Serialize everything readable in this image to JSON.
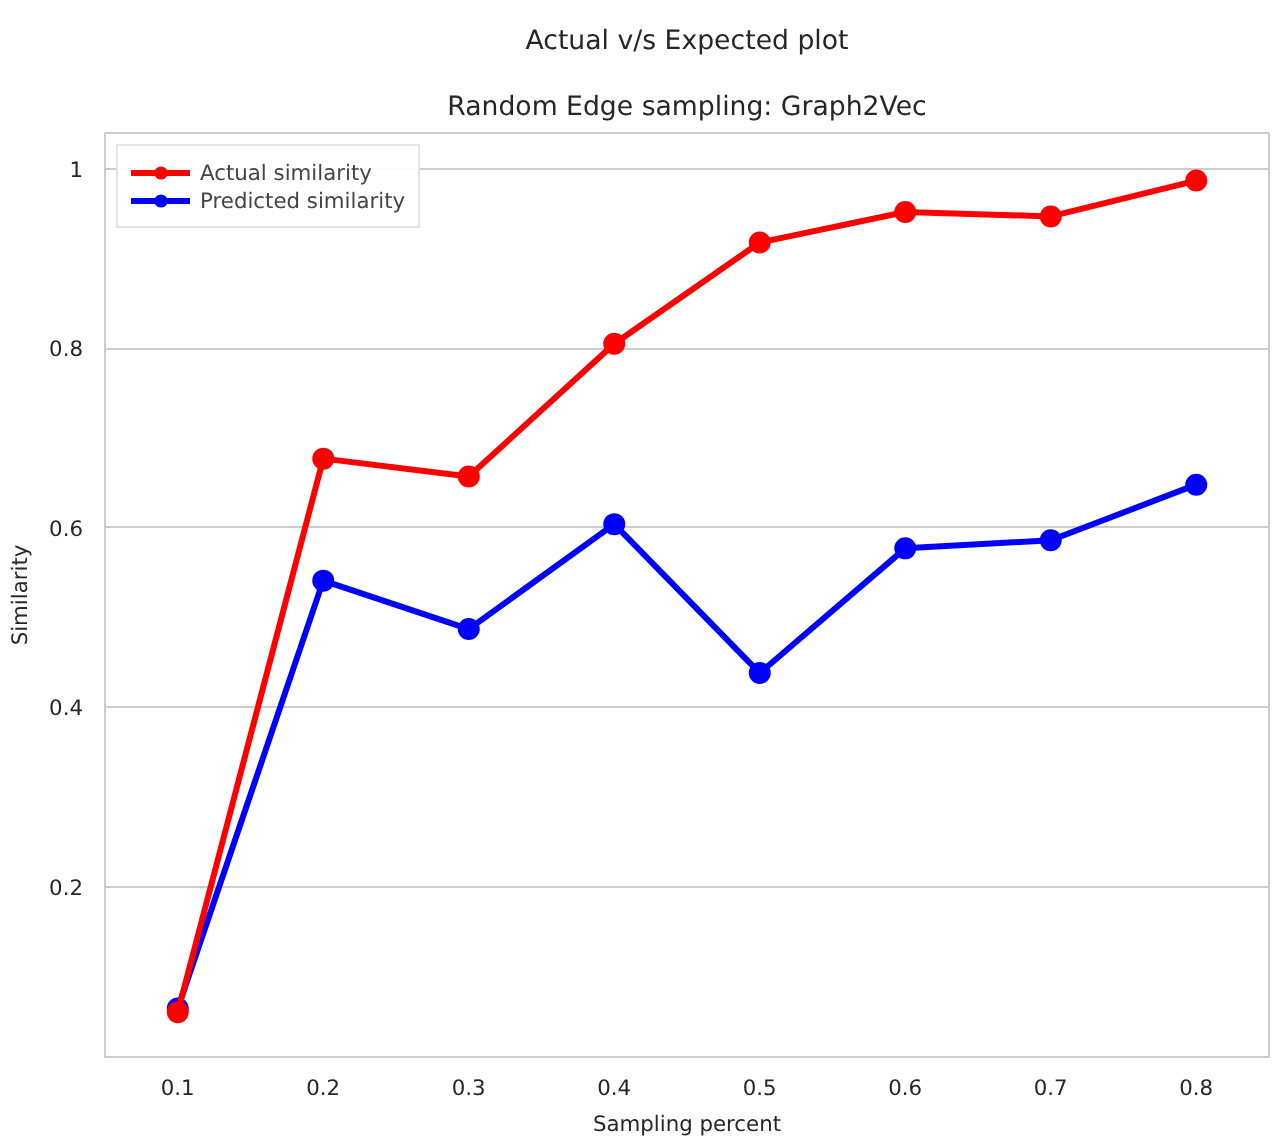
{
  "chart_data": {
    "type": "line",
    "title": "Random Edge sampling: Graph2Vec",
    "subtitle": "Actual v/s Expected plot",
    "xlabel": "Sampling percent",
    "ylabel": "Similarity",
    "categories": [
      "0.1",
      "0.2",
      "0.3",
      "0.4",
      "0.5",
      "0.6",
      "0.7",
      "0.8"
    ],
    "series": [
      {
        "name": "Actual similarity",
        "color": "#ff0000",
        "values": [
          0.06,
          0.677,
          0.657,
          0.805,
          0.918,
          0.952,
          0.947,
          0.987
        ]
      },
      {
        "name": "Predicted similarity",
        "color": "#0000ff",
        "values": [
          0.064,
          0.541,
          0.487,
          0.604,
          0.438,
          0.577,
          0.586,
          0.648
        ]
      }
    ],
    "ylim": [
      0.01,
      1.04
    ],
    "yticks": [
      0.2,
      0.4,
      0.6,
      0.8,
      1.0
    ],
    "grid": "y",
    "legend": "top left",
    "marker": "circle",
    "line_style": "solid"
  }
}
